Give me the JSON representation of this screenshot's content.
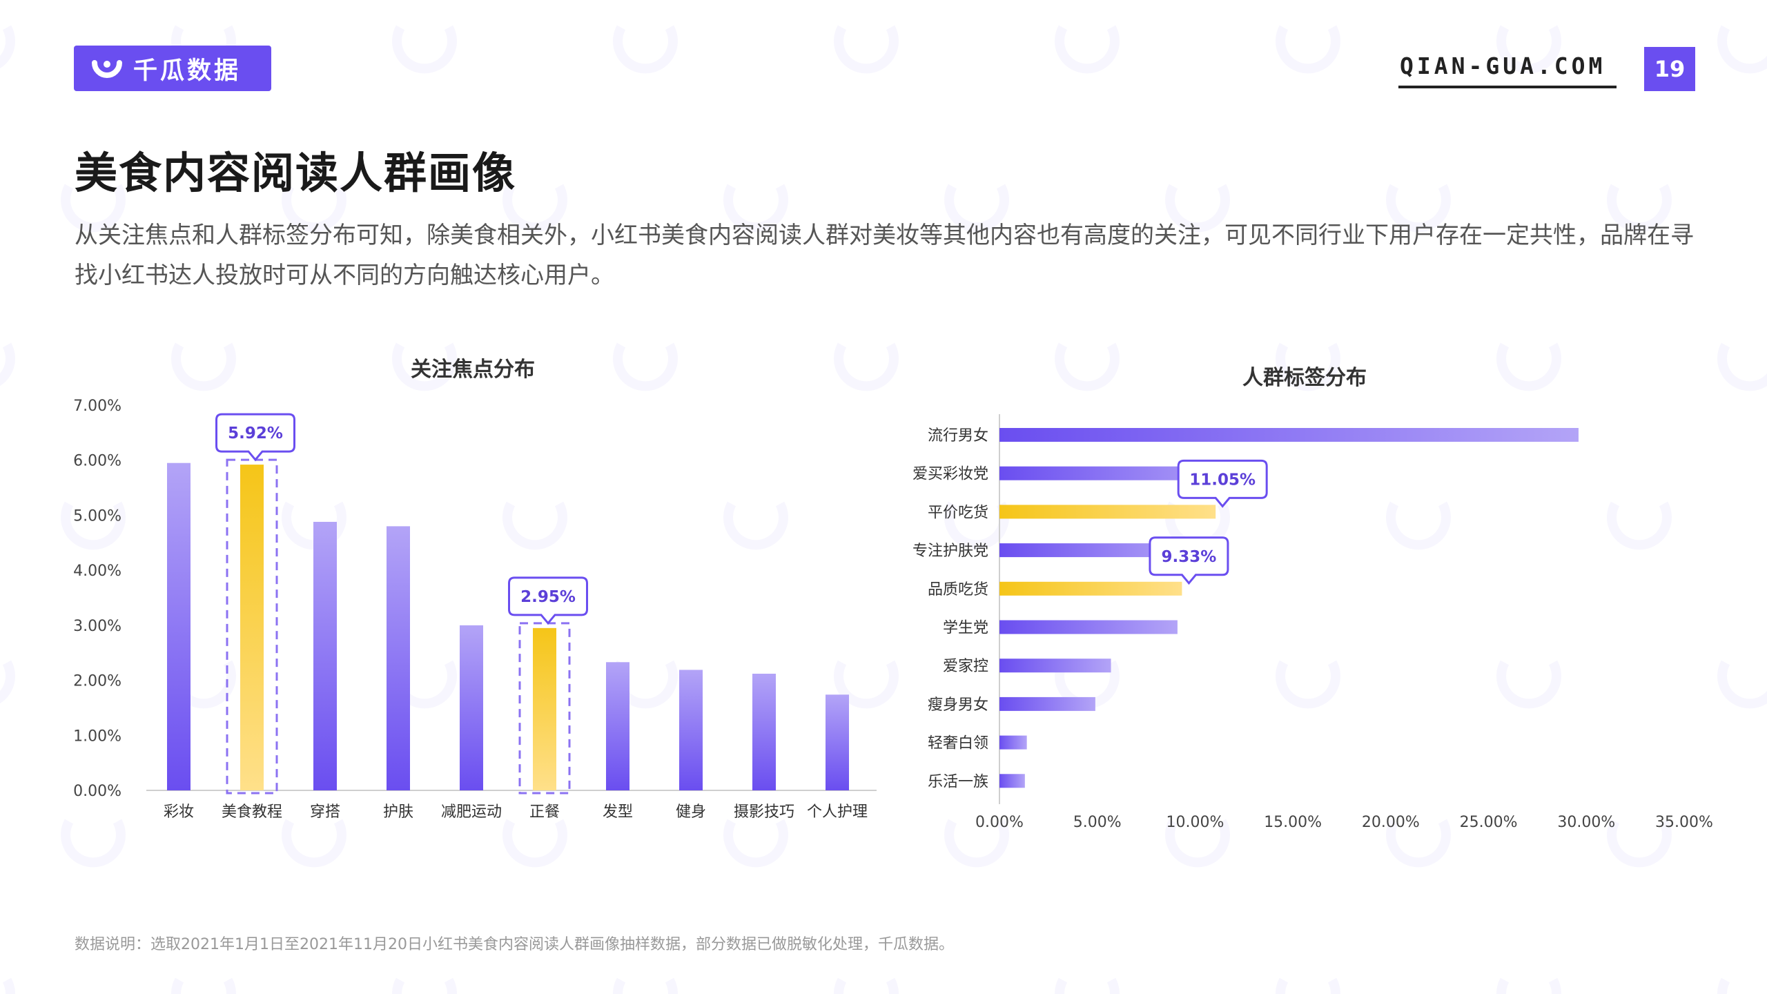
{
  "header": {
    "logo_text": "千瓜数据",
    "site": "QIAN-GUA.COM",
    "page_number": "19"
  },
  "title": "美食内容阅读人群画像",
  "description": "从关注焦点和人群标签分布可知，除美食相关外，小红书美食内容阅读人群对美妆等其他内容也有高度的关注，可见不同行业下用户存在一定共性，品牌在寻找小红书达人投放时可从不同的方向触达核心用户。",
  "footnote": "数据说明：选取2021年1月1日至2021年11月20日小红书美食内容阅读人群画像抽样数据，部分数据已做脱敏化处理，千瓜数据。",
  "watermark": "千瓜数据 QIAN-GUA.COM",
  "colors": {
    "accent": "#6a4ef0",
    "purple_top": "#b3a4f7",
    "purple_bottom": "#6a4ef0",
    "gold_top": "#ffe08a",
    "gold_bottom": "#f5c518"
  },
  "chart_data": [
    {
      "type": "bar",
      "title": "关注焦点分布",
      "categories": [
        "彩妆",
        "美食教程",
        "穿搭",
        "护肤",
        "减肥运动",
        "正餐",
        "发型",
        "健身",
        "摄影技巧",
        "个人护理"
      ],
      "values": [
        5.95,
        5.92,
        4.88,
        4.8,
        3.0,
        2.95,
        2.33,
        2.19,
        2.12,
        1.74
      ],
      "highlight": [
        "美食教程",
        "正餐"
      ],
      "annotations": [
        {
          "category": "美食教程",
          "label": "5.92%"
        },
        {
          "category": "正餐",
          "label": "2.95%"
        }
      ],
      "yticks": [
        "0.00%",
        "1.00%",
        "2.00%",
        "3.00%",
        "4.00%",
        "5.00%",
        "6.00%",
        "7.00%"
      ],
      "ylim": [
        0,
        7
      ],
      "grid": false
    },
    {
      "type": "bar",
      "orientation": "horizontal",
      "title": "人群标签分布",
      "categories": [
        "流行男女",
        "爱买彩妆党",
        "平价吃货",
        "专注护肤党",
        "品质吃货",
        "学生党",
        "爱家控",
        "瘦身男女",
        "轻奢白领",
        "乐活一族"
      ],
      "values": [
        29.6,
        12.2,
        11.05,
        9.8,
        9.33,
        9.1,
        5.7,
        4.9,
        1.4,
        1.3
      ],
      "highlight": [
        "平价吃货",
        "品质吃货"
      ],
      "annotations": [
        {
          "category": "平价吃货",
          "label": "11.05%"
        },
        {
          "category": "品质吃货",
          "label": "9.33%"
        }
      ],
      "xticks": [
        "0.00%",
        "5.00%",
        "10.00%",
        "15.00%",
        "20.00%",
        "25.00%",
        "30.00%",
        "35.00%"
      ],
      "xlim": [
        0,
        35
      ],
      "grid": false
    }
  ]
}
